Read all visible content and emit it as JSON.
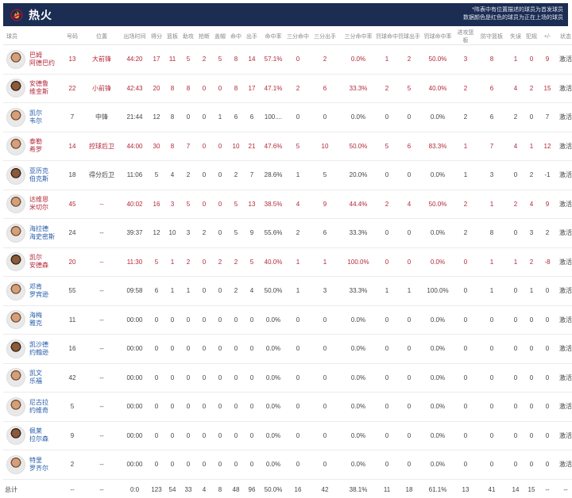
{
  "header": {
    "team_name": "热火",
    "note_line1": "*阵表中有位置描述的球员为首发球员",
    "note_line2": "数据颜色是红色的球员为正在上场的球员",
    "logo_icon": "heat-logo-icon"
  },
  "columns": [
    "球员",
    "号码",
    "位置",
    "出场时间",
    "得分",
    "篮板",
    "助攻",
    "抢断",
    "盖帽",
    "命中",
    "出手",
    "命中率",
    "三分命中",
    "三分出手",
    "三分命中率",
    "罚球命中",
    "罚球出手",
    "罚球命中率",
    "进攻篮板",
    "防守篮板",
    "失误",
    "犯规",
    "+/-",
    "状态"
  ],
  "players": [
    {
      "name1": "巴姆",
      "name2": "阿德巴约",
      "number": "13",
      "position": "大前锋",
      "minutes": "44:20",
      "pts": "17",
      "reb": "11",
      "ast": "5",
      "stl": "2",
      "blk": "5",
      "fgm": "8",
      "fga": "14",
      "fgp": "57.1%",
      "tpm": "0",
      "tpa": "2",
      "tpp": "0.0%",
      "ftm": "1",
      "fta": "2",
      "ftp": "50.0%",
      "oreb": "3",
      "dreb": "8",
      "tov": "1",
      "pf": "0",
      "pm": "9",
      "status": "激活",
      "starter": true,
      "on_court": true
    },
    {
      "name1": "安德鲁",
      "name2": "维金斯",
      "number": "22",
      "position": "小前锋",
      "minutes": "42:43",
      "pts": "20",
      "reb": "8",
      "ast": "8",
      "stl": "0",
      "blk": "0",
      "fgm": "8",
      "fga": "17",
      "fgp": "47.1%",
      "tpm": "2",
      "tpa": "6",
      "tpp": "33.3%",
      "ftm": "2",
      "fta": "5",
      "ftp": "40.0%",
      "oreb": "2",
      "dreb": "6",
      "tov": "4",
      "pf": "2",
      "pm": "15",
      "status": "激活",
      "starter": true,
      "on_court": true
    },
    {
      "name1": "凯尔",
      "name2": "韦尔",
      "number": "7",
      "position": "中锋",
      "minutes": "21:44",
      "pts": "12",
      "reb": "8",
      "ast": "0",
      "stl": "0",
      "blk": "1",
      "fgm": "6",
      "fga": "6",
      "fgp": "100....",
      "tpm": "0",
      "tpa": "0",
      "tpp": "0.0%",
      "ftm": "0",
      "fta": "0",
      "ftp": "0.0%",
      "oreb": "2",
      "dreb": "6",
      "tov": "2",
      "pf": "0",
      "pm": "7",
      "status": "激活",
      "starter": true,
      "on_court": false
    },
    {
      "name1": "泰勒",
      "name2": "希罗",
      "number": "14",
      "position": "控球后卫",
      "minutes": "44:00",
      "pts": "30",
      "reb": "8",
      "ast": "7",
      "stl": "0",
      "blk": "0",
      "fgm": "10",
      "fga": "21",
      "fgp": "47.6%",
      "tpm": "5",
      "tpa": "10",
      "tpp": "50.0%",
      "ftm": "5",
      "fta": "6",
      "ftp": "83.3%",
      "oreb": "1",
      "dreb": "7",
      "tov": "4",
      "pf": "1",
      "pm": "12",
      "status": "激活",
      "starter": true,
      "on_court": true
    },
    {
      "name1": "亚历克",
      "name2": "伯克斯",
      "number": "18",
      "position": "得分后卫",
      "minutes": "11:06",
      "pts": "5",
      "reb": "4",
      "ast": "2",
      "stl": "0",
      "blk": "0",
      "fgm": "2",
      "fga": "7",
      "fgp": "28.6%",
      "tpm": "1",
      "tpa": "5",
      "tpp": "20.0%",
      "ftm": "0",
      "fta": "0",
      "ftp": "0.0%",
      "oreb": "1",
      "dreb": "3",
      "tov": "0",
      "pf": "2",
      "pm": "-1",
      "status": "激活",
      "starter": true,
      "on_court": false
    },
    {
      "name1": "达维恩",
      "name2": "米切尔",
      "number": "45",
      "position": "--",
      "minutes": "40:02",
      "pts": "16",
      "reb": "3",
      "ast": "5",
      "stl": "0",
      "blk": "0",
      "fgm": "5",
      "fga": "13",
      "fgp": "38.5%",
      "tpm": "4",
      "tpa": "9",
      "tpp": "44.4%",
      "ftm": "2",
      "fta": "4",
      "ftp": "50.0%",
      "oreb": "2",
      "dreb": "1",
      "tov": "2",
      "pf": "4",
      "pm": "9",
      "status": "激活",
      "starter": false,
      "on_court": true
    },
    {
      "name1": "海拉德",
      "name2": "海史密斯",
      "number": "24",
      "position": "--",
      "minutes": "39:37",
      "pts": "12",
      "reb": "10",
      "ast": "3",
      "stl": "2",
      "blk": "0",
      "fgm": "5",
      "fga": "9",
      "fgp": "55.6%",
      "tpm": "2",
      "tpa": "6",
      "tpp": "33.3%",
      "ftm": "0",
      "fta": "0",
      "ftp": "0.0%",
      "oreb": "2",
      "dreb": "8",
      "tov": "0",
      "pf": "3",
      "pm": "2",
      "status": "激活",
      "starter": false,
      "on_court": false
    },
    {
      "name1": "凯尔",
      "name2": "安德森",
      "number": "20",
      "position": "--",
      "minutes": "11:30",
      "pts": "5",
      "reb": "1",
      "ast": "2",
      "stl": "0",
      "blk": "2",
      "fgm": "2",
      "fga": "5",
      "fgp": "40.0%",
      "tpm": "1",
      "tpa": "1",
      "tpp": "100.0%",
      "ftm": "0",
      "fta": "0",
      "ftp": "0.0%",
      "oreb": "0",
      "dreb": "1",
      "tov": "1",
      "pf": "2",
      "pm": "-8",
      "status": "激活",
      "starter": false,
      "on_court": true
    },
    {
      "name1": "邓肯",
      "name2": "罗宾逊",
      "number": "55",
      "position": "--",
      "minutes": "09:58",
      "pts": "6",
      "reb": "1",
      "ast": "1",
      "stl": "0",
      "blk": "0",
      "fgm": "2",
      "fga": "4",
      "fgp": "50.0%",
      "tpm": "1",
      "tpa": "3",
      "tpp": "33.3%",
      "ftm": "1",
      "fta": "1",
      "ftp": "100.0%",
      "oreb": "0",
      "dreb": "1",
      "tov": "0",
      "pf": "1",
      "pm": "0",
      "status": "激活",
      "starter": false,
      "on_court": false
    },
    {
      "name1": "海梅",
      "name2": "雅克",
      "number": "11",
      "position": "--",
      "minutes": "00:00",
      "pts": "0",
      "reb": "0",
      "ast": "0",
      "stl": "0",
      "blk": "0",
      "fgm": "0",
      "fga": "0",
      "fgp": "0.0%",
      "tpm": "0",
      "tpa": "0",
      "tpp": "0.0%",
      "ftm": "0",
      "fta": "0",
      "ftp": "0.0%",
      "oreb": "0",
      "dreb": "0",
      "tov": "0",
      "pf": "0",
      "pm": "0",
      "status": "激活",
      "starter": false,
      "on_court": false
    },
    {
      "name1": "凯沙德",
      "name2": "约翰逊",
      "number": "16",
      "position": "--",
      "minutes": "00:00",
      "pts": "0",
      "reb": "0",
      "ast": "0",
      "stl": "0",
      "blk": "0",
      "fgm": "0",
      "fga": "0",
      "fgp": "0.0%",
      "tpm": "0",
      "tpa": "0",
      "tpp": "0.0%",
      "ftm": "0",
      "fta": "0",
      "ftp": "0.0%",
      "oreb": "0",
      "dreb": "0",
      "tov": "0",
      "pf": "0",
      "pm": "0",
      "status": "激活",
      "starter": false,
      "on_court": false
    },
    {
      "name1": "凯文",
      "name2": "乐福",
      "number": "42",
      "position": "--",
      "minutes": "00:00",
      "pts": "0",
      "reb": "0",
      "ast": "0",
      "stl": "0",
      "blk": "0",
      "fgm": "0",
      "fga": "0",
      "fgp": "0.0%",
      "tpm": "0",
      "tpa": "0",
      "tpp": "0.0%",
      "ftm": "0",
      "fta": "0",
      "ftp": "0.0%",
      "oreb": "0",
      "dreb": "0",
      "tov": "0",
      "pf": "0",
      "pm": "0",
      "status": "激活",
      "starter": false,
      "on_court": false
    },
    {
      "name1": "尼古拉",
      "name2": "约维奇",
      "number": "5",
      "position": "--",
      "minutes": "00:00",
      "pts": "0",
      "reb": "0",
      "ast": "0",
      "stl": "0",
      "blk": "0",
      "fgm": "0",
      "fga": "0",
      "fgp": "0.0%",
      "tpm": "0",
      "tpa": "0",
      "tpp": "0.0%",
      "ftm": "0",
      "fta": "0",
      "ftp": "0.0%",
      "oreb": "0",
      "dreb": "0",
      "tov": "0",
      "pf": "0",
      "pm": "0",
      "status": "激活",
      "starter": false,
      "on_court": false
    },
    {
      "name1": "佩莱",
      "name2": "拉尔森",
      "number": "9",
      "position": "--",
      "minutes": "00:00",
      "pts": "0",
      "reb": "0",
      "ast": "0",
      "stl": "0",
      "blk": "0",
      "fgm": "0",
      "fga": "0",
      "fgp": "0.0%",
      "tpm": "0",
      "tpa": "0",
      "tpp": "0.0%",
      "ftm": "0",
      "fta": "0",
      "ftp": "0.0%",
      "oreb": "0",
      "dreb": "0",
      "tov": "0",
      "pf": "0",
      "pm": "0",
      "status": "激活",
      "starter": false,
      "on_court": false
    },
    {
      "name1": "特里",
      "name2": "罗齐尔",
      "number": "2",
      "position": "--",
      "minutes": "00:00",
      "pts": "0",
      "reb": "0",
      "ast": "0",
      "stl": "0",
      "blk": "0",
      "fgm": "0",
      "fga": "0",
      "fgp": "0.0%",
      "tpm": "0",
      "tpa": "0",
      "tpp": "0.0%",
      "ftm": "0",
      "fta": "0",
      "ftp": "0.0%",
      "oreb": "0",
      "dreb": "0",
      "tov": "0",
      "pf": "0",
      "pm": "0",
      "status": "激活",
      "starter": false,
      "on_court": false
    }
  ],
  "totals": {
    "label": "总计",
    "number": "--",
    "position": "--",
    "minutes": "0:0",
    "pts": "123",
    "reb": "54",
    "ast": "33",
    "stl": "4",
    "blk": "8",
    "fgm": "48",
    "fga": "96",
    "fgp": "50.0%",
    "tpm": "16",
    "tpa": "42",
    "tpp": "38.1%",
    "ftm": "11",
    "fta": "18",
    "ftp": "61.1%",
    "oreb": "13",
    "dreb": "41",
    "tov": "14",
    "pf": "15",
    "pm": "--",
    "status": "--"
  }
}
